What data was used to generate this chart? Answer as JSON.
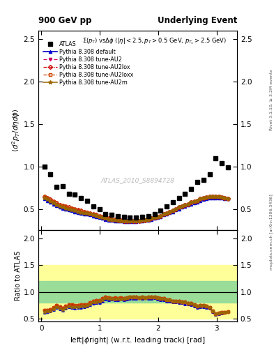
{
  "title_left": "900 GeV pp",
  "title_right": "Underlying Event",
  "ylabel_main": "$\\langle d^2 p_T / d\\eta d\\phi \\rangle$",
  "ylabel_ratio": "Ratio to ATLAS",
  "xlabel": "left|$\\phi$right| (w.r.t. leading track) [rad]",
  "annotation": "$\\Sigma(p_T)$ vs$\\Delta\\phi$ ($|\\eta| < 2.5, p_T > 0.5$ GeV, $p_{T_1} > 2.5$ GeV)",
  "watermark": "ATLAS_2010_S8894728",
  "right_label_top": "Rivet 3.1.10, ≥ 3.2M events",
  "right_label_bottom": "mcplots.cern.ch [arXiv:1306.3436]",
  "ylim_main": [
    0.25,
    2.6
  ],
  "ylim_ratio": [
    0.45,
    2.15
  ],
  "yticks_main": [
    0.5,
    1.0,
    1.5,
    2.0,
    2.5
  ],
  "yticks_ratio": [
    0.5,
    1.0,
    1.5,
    2.0
  ],
  "xlim": [
    -0.05,
    3.35
  ],
  "xticks": [
    0,
    1,
    2,
    3
  ],
  "data_x": [
    0.052,
    0.157,
    0.262,
    0.367,
    0.471,
    0.576,
    0.681,
    0.785,
    0.89,
    0.995,
    1.1,
    1.204,
    1.309,
    1.414,
    1.518,
    1.623,
    1.728,
    1.833,
    1.937,
    2.042,
    2.147,
    2.251,
    2.356,
    2.461,
    2.565,
    2.67,
    2.775,
    2.88,
    2.984,
    3.089,
    3.194
  ],
  "data_y": [
    1.0,
    0.91,
    0.76,
    0.77,
    0.68,
    0.67,
    0.63,
    0.6,
    0.53,
    0.5,
    0.44,
    0.43,
    0.42,
    0.41,
    0.4,
    0.4,
    0.41,
    0.42,
    0.44,
    0.48,
    0.53,
    0.58,
    0.63,
    0.68,
    0.74,
    0.82,
    0.84,
    0.91,
    1.1,
    1.04,
    0.99
  ],
  "pythia_x": [
    0.052,
    0.105,
    0.157,
    0.21,
    0.262,
    0.314,
    0.367,
    0.419,
    0.471,
    0.524,
    0.576,
    0.628,
    0.681,
    0.733,
    0.785,
    0.838,
    0.89,
    0.942,
    0.995,
    1.047,
    1.1,
    1.152,
    1.204,
    1.257,
    1.309,
    1.361,
    1.414,
    1.466,
    1.518,
    1.571,
    1.623,
    1.676,
    1.728,
    1.78,
    1.833,
    1.885,
    1.937,
    1.99,
    2.042,
    2.094,
    2.147,
    2.199,
    2.251,
    2.304,
    2.356,
    2.408,
    2.461,
    2.513,
    2.565,
    2.618,
    2.67,
    2.723,
    2.775,
    2.827,
    2.88,
    2.932,
    2.984,
    3.037,
    3.089,
    3.141,
    3.194
  ],
  "default_y": [
    0.62,
    0.6,
    0.58,
    0.56,
    0.54,
    0.52,
    0.51,
    0.5,
    0.49,
    0.48,
    0.47,
    0.46,
    0.45,
    0.44,
    0.44,
    0.43,
    0.42,
    0.41,
    0.4,
    0.39,
    0.38,
    0.37,
    0.37,
    0.36,
    0.36,
    0.36,
    0.35,
    0.35,
    0.35,
    0.35,
    0.35,
    0.36,
    0.36,
    0.37,
    0.37,
    0.38,
    0.39,
    0.4,
    0.41,
    0.43,
    0.44,
    0.46,
    0.47,
    0.49,
    0.5,
    0.52,
    0.53,
    0.55,
    0.56,
    0.57,
    0.58,
    0.6,
    0.61,
    0.62,
    0.63,
    0.63,
    0.63,
    0.63,
    0.63,
    0.62,
    0.62
  ],
  "au2_y": [
    0.64,
    0.62,
    0.6,
    0.58,
    0.56,
    0.54,
    0.53,
    0.52,
    0.51,
    0.5,
    0.49,
    0.48,
    0.47,
    0.46,
    0.45,
    0.44,
    0.43,
    0.42,
    0.41,
    0.4,
    0.39,
    0.38,
    0.38,
    0.37,
    0.37,
    0.36,
    0.36,
    0.36,
    0.36,
    0.36,
    0.36,
    0.36,
    0.37,
    0.37,
    0.38,
    0.39,
    0.4,
    0.41,
    0.42,
    0.44,
    0.45,
    0.47,
    0.48,
    0.5,
    0.52,
    0.53,
    0.55,
    0.56,
    0.58,
    0.59,
    0.6,
    0.62,
    0.63,
    0.64,
    0.65,
    0.65,
    0.65,
    0.65,
    0.64,
    0.63,
    0.62
  ],
  "au2lox_y": [
    0.65,
    0.63,
    0.61,
    0.59,
    0.57,
    0.55,
    0.54,
    0.53,
    0.52,
    0.51,
    0.5,
    0.49,
    0.48,
    0.47,
    0.46,
    0.45,
    0.44,
    0.43,
    0.42,
    0.41,
    0.4,
    0.39,
    0.38,
    0.38,
    0.37,
    0.37,
    0.36,
    0.36,
    0.36,
    0.36,
    0.36,
    0.36,
    0.37,
    0.37,
    0.38,
    0.39,
    0.4,
    0.41,
    0.42,
    0.44,
    0.45,
    0.47,
    0.48,
    0.5,
    0.52,
    0.53,
    0.55,
    0.56,
    0.58,
    0.59,
    0.6,
    0.62,
    0.63,
    0.64,
    0.65,
    0.65,
    0.65,
    0.65,
    0.64,
    0.63,
    0.62
  ],
  "au2loxx_y": [
    0.65,
    0.63,
    0.61,
    0.59,
    0.57,
    0.55,
    0.54,
    0.53,
    0.52,
    0.51,
    0.5,
    0.49,
    0.48,
    0.47,
    0.46,
    0.45,
    0.44,
    0.43,
    0.42,
    0.41,
    0.4,
    0.39,
    0.38,
    0.38,
    0.37,
    0.37,
    0.36,
    0.36,
    0.36,
    0.36,
    0.36,
    0.36,
    0.37,
    0.37,
    0.38,
    0.39,
    0.4,
    0.41,
    0.42,
    0.44,
    0.45,
    0.47,
    0.48,
    0.5,
    0.52,
    0.53,
    0.55,
    0.56,
    0.58,
    0.59,
    0.6,
    0.62,
    0.63,
    0.64,
    0.65,
    0.65,
    0.65,
    0.65,
    0.64,
    0.63,
    0.62
  ],
  "au2m_y": [
    0.63,
    0.61,
    0.59,
    0.57,
    0.55,
    0.53,
    0.52,
    0.51,
    0.5,
    0.49,
    0.48,
    0.47,
    0.46,
    0.45,
    0.45,
    0.44,
    0.43,
    0.42,
    0.41,
    0.4,
    0.39,
    0.38,
    0.38,
    0.37,
    0.37,
    0.36,
    0.36,
    0.36,
    0.36,
    0.36,
    0.36,
    0.36,
    0.37,
    0.37,
    0.38,
    0.39,
    0.4,
    0.41,
    0.42,
    0.44,
    0.45,
    0.47,
    0.48,
    0.5,
    0.52,
    0.53,
    0.55,
    0.56,
    0.58,
    0.59,
    0.6,
    0.62,
    0.63,
    0.64,
    0.65,
    0.65,
    0.65,
    0.65,
    0.64,
    0.63,
    0.62
  ],
  "band_yellow_low": 0.5,
  "band_yellow_high": 1.5,
  "band_green_low": 0.8,
  "band_green_high": 1.2,
  "colors": {
    "data": "#000000",
    "default": "#0000cc",
    "au2": "#cc0066",
    "au2lox": "#cc0000",
    "au2loxx": "#cc4400",
    "au2m": "#996600",
    "yellow_band": "#ffff99",
    "green_band": "#99dd99"
  }
}
